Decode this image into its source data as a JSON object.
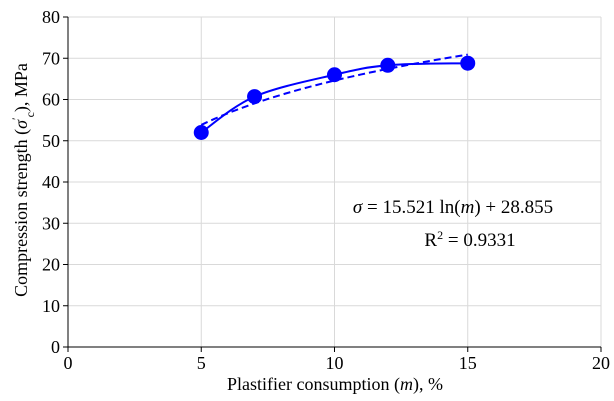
{
  "chart_data": {
    "type": "scatter",
    "xlabel": "Plastifier consumption (m), %",
    "ylabel": "Compression strength (σ'c), MPa",
    "xlim": [
      0,
      20
    ],
    "ylim": [
      0,
      80
    ],
    "xticks": [
      0,
      5,
      10,
      15,
      20
    ],
    "yticks": [
      0,
      10,
      20,
      30,
      40,
      50,
      60,
      70,
      80
    ],
    "grid": true,
    "series": [
      {
        "x": [
          5,
          7,
          10,
          12,
          15
        ],
        "y": [
          52,
          60.7,
          66,
          68.3,
          68.8
        ],
        "color": "#0000ff",
        "marker": "circle",
        "line": "solid-smooth"
      }
    ],
    "trendline": {
      "type": "logarithmic",
      "a": 15.521,
      "b": 28.855,
      "x_range": [
        5,
        15
      ],
      "style": "dashed",
      "color": "#0000ff"
    },
    "annotations": {
      "equation": "σ = 15.521 ln(m) + 28.855",
      "r_squared": "R² = 0.9331"
    }
  }
}
